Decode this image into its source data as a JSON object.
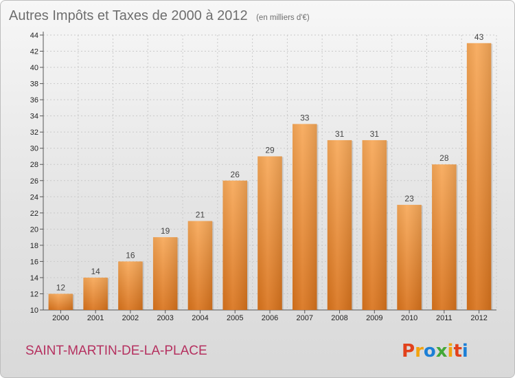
{
  "chart_data": {
    "type": "bar",
    "title": "Autres Impôts et Taxes de 2000 à 2012",
    "subtitle": "(en milliers d'€)",
    "categories": [
      "2000",
      "2001",
      "2002",
      "2003",
      "2004",
      "2005",
      "2006",
      "2007",
      "2008",
      "2009",
      "2010",
      "2011",
      "2012"
    ],
    "values": [
      12,
      14,
      16,
      19,
      21,
      26,
      29,
      33,
      31,
      31,
      23,
      28,
      43
    ],
    "ylim": [
      10,
      44
    ],
    "yticks": [
      10,
      12,
      14,
      16,
      18,
      20,
      22,
      24,
      26,
      28,
      30,
      32,
      34,
      36,
      38,
      40,
      42,
      44
    ],
    "grid": true,
    "legend": "none",
    "bar_color": "#ef9440"
  },
  "footer": {
    "commune": "SAINT-MARTIN-DE-LA-PLACE",
    "logo_text": "Proxiti",
    "logo_colors": [
      "#e2411b",
      "#f2a30f",
      "#1c7fd6",
      "#43a838",
      "#f2a30f",
      "#e2411b",
      "#1c7fd6"
    ]
  }
}
